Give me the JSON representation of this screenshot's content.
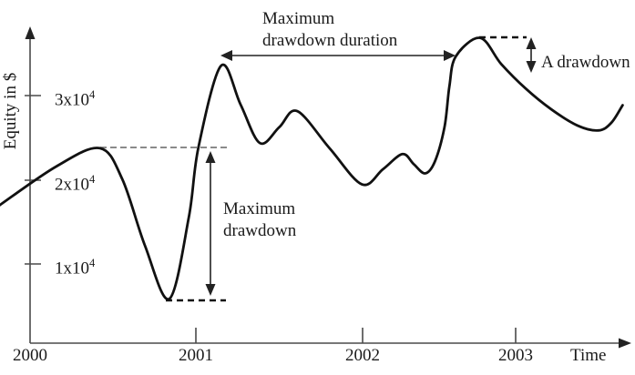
{
  "y_axis": {
    "label": "Equity in $",
    "ticks": [
      {
        "base": "3x10",
        "exp": "4"
      },
      {
        "base": "2x10",
        "exp": "4"
      },
      {
        "base": "1x10",
        "exp": "4"
      }
    ]
  },
  "x_axis": {
    "label": "Time",
    "ticks": [
      "2000",
      "2001",
      "2002",
      "2003"
    ]
  },
  "annotations": {
    "max_drawdown_duration_line1": "Maximum",
    "max_drawdown_duration_line2": "drawdown duration",
    "max_drawdown_line1": "Maximum",
    "max_drawdown_line2": "drawdown",
    "a_drawdown": "A drawdown"
  },
  "colors": {
    "ink": "#1a1a1a",
    "curve": "#111111",
    "axis": "#4a4a4a",
    "dash_gray": "#7a7a7a"
  },
  "chart_data": {
    "type": "line",
    "title": "",
    "xlabel": "Time",
    "ylabel": "Equity in $",
    "x_tick_values": [
      2000,
      2001,
      2002,
      2003
    ],
    "y_tick_values": [
      10000,
      20000,
      30000
    ],
    "y_tick_labels": [
      "1x10^4",
      "2x10^4",
      "3x10^4"
    ],
    "xlim": [
      1999.81,
      2003.72
    ],
    "ylim": [
      500,
      38000
    ],
    "grid": false,
    "legend": false,
    "series": [
      {
        "name": "Equity curve",
        "trace": [
          [
            1999.81,
            16900
          ],
          [
            2000.16,
            21500
          ],
          [
            2000.43,
            23700
          ],
          [
            2000.57,
            20000
          ],
          [
            2000.71,
            12100
          ],
          [
            2000.86,
            5800
          ],
          [
            2000.98,
            15400
          ],
          [
            2001.04,
            23800
          ],
          [
            2001.18,
            33500
          ],
          [
            2001.3,
            28900
          ],
          [
            2001.42,
            24300
          ],
          [
            2001.54,
            26200
          ],
          [
            2001.65,
            28100
          ],
          [
            2001.85,
            23700
          ],
          [
            2002.05,
            19400
          ],
          [
            2002.18,
            21200
          ],
          [
            2002.3,
            23000
          ],
          [
            2002.37,
            21800
          ],
          [
            2002.44,
            20700
          ],
          [
            2002.5,
            22100
          ],
          [
            2002.56,
            26200
          ],
          [
            2002.59,
            31000
          ],
          [
            2002.63,
            34600
          ],
          [
            2002.78,
            36800
          ],
          [
            2002.91,
            33700
          ],
          [
            2003.06,
            30800
          ],
          [
            2003.22,
            28300
          ],
          [
            2003.38,
            26400
          ],
          [
            2003.51,
            25800
          ],
          [
            2003.59,
            26700
          ],
          [
            2003.66,
            28800
          ]
        ]
      }
    ],
    "key_points": {
      "first_peak": {
        "x": 2000.43,
        "y": 23700
      },
      "max_drawdown_trough": {
        "x": 2000.86,
        "y": 5800
      },
      "recovery_peak": {
        "x": 2001.18,
        "y": 33500
      },
      "highest_peak": {
        "x": 2002.78,
        "y": 36800
      },
      "final_trough": {
        "x": 2003.51,
        "y": 25800
      },
      "end_value": {
        "x": 2003.66,
        "y": 28800
      }
    },
    "annotations": [
      {
        "label": "Maximum drawdown",
        "kind": "vertical-double-arrow",
        "x": 2001.11,
        "y_from": 23100,
        "y_to": 6400
      },
      {
        "label": "Maximum drawdown duration",
        "kind": "horizontal-double-arrow",
        "y": 34700,
        "x_from": 2001.18,
        "x_to": 2002.63
      },
      {
        "label": "A drawdown",
        "kind": "vertical-double-arrow",
        "x": 2003.1,
        "y_from": 36600,
        "y_to": 32800
      }
    ]
  }
}
